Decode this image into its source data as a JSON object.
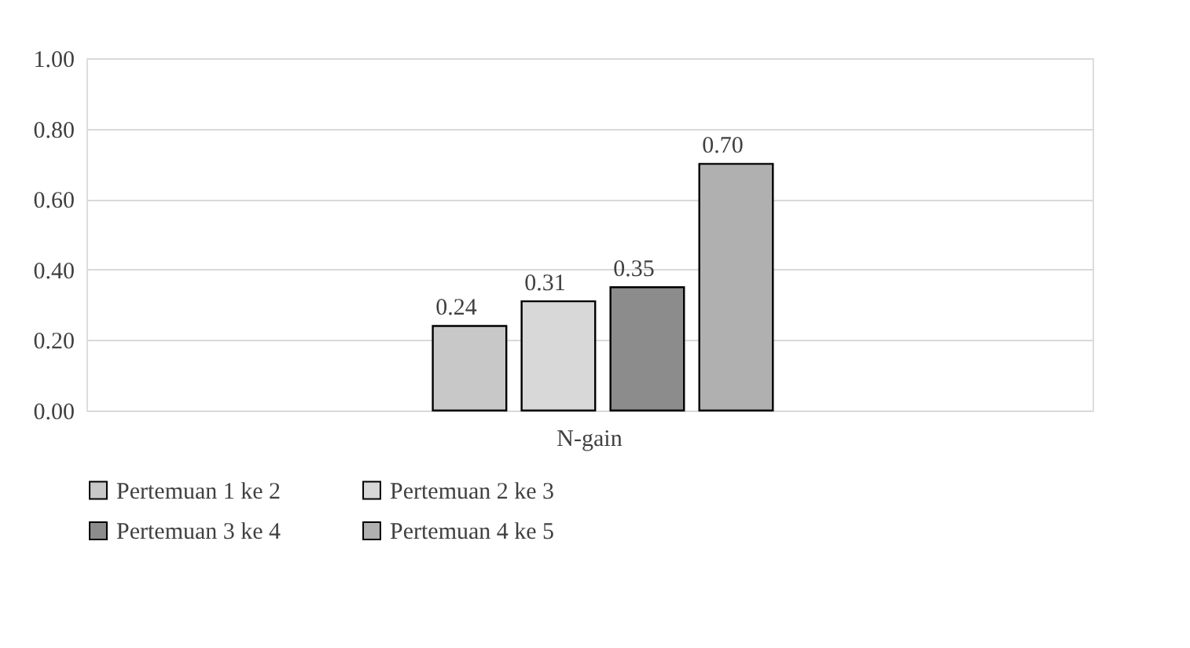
{
  "chart_data": {
    "type": "bar",
    "categories": [
      "N-gain"
    ],
    "series": [
      {
        "name": "Pertemuan 1 ke 2",
        "color": "#c8c8c8",
        "values": [
          0.24
        ],
        "value_labels": [
          "0.24"
        ]
      },
      {
        "name": "Pertemuan 2 ke 3",
        "color": "#d8d8d8",
        "values": [
          0.31
        ],
        "value_labels": [
          "0.31"
        ]
      },
      {
        "name": "Pertemuan 3 ke 4",
        "color": "#8c8c8c",
        "values": [
          0.35
        ],
        "value_labels": [
          "0.35"
        ]
      },
      {
        "name": "Pertemuan 4 ke 5",
        "color": "#b0b0b0",
        "values": [
          0.7
        ],
        "value_labels": [
          "0.70"
        ]
      }
    ],
    "ylim": [
      0,
      1
    ],
    "yticks": [
      {
        "value": 0,
        "label": "0.00"
      },
      {
        "value": 0.2,
        "label": "0.20"
      },
      {
        "value": 0.4,
        "label": "0.40"
      },
      {
        "value": 0.6,
        "label": "0.60"
      },
      {
        "value": 0.8,
        "label": "0.80"
      },
      {
        "value": 1,
        "label": "1.00"
      }
    ],
    "grid": "y",
    "legend": "bottom"
  }
}
